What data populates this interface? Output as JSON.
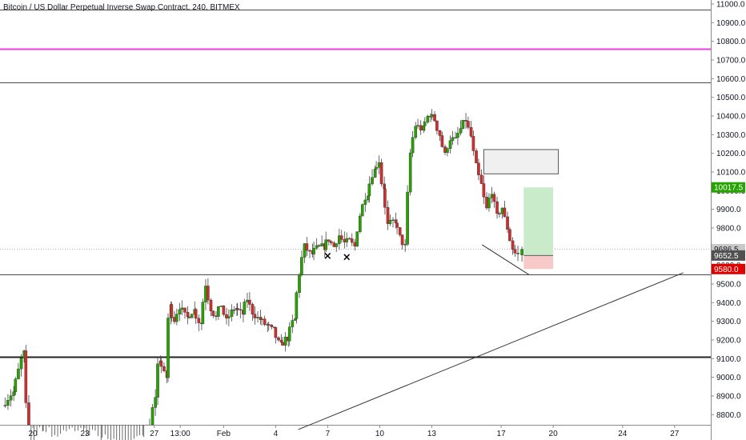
{
  "chart_data": {
    "type": "candlestick",
    "title": "Bitcoin / US Dollar Perpetual Inverse Swap Contract, 240, BITMEX",
    "y_ticks": [
      8800,
      8900,
      9000,
      9100,
      9200,
      9300,
      9400,
      9500,
      9600,
      9700,
      9800,
      9900,
      10000,
      10100,
      10200,
      10300,
      10400,
      10500,
      10600,
      10700,
      10800,
      10900,
      11000
    ],
    "y_tick_labels": [
      "8800.0",
      "8900.0",
      "9000.0",
      "9100.0",
      "9200.0",
      "9300.0",
      "9400.0",
      "9500.0",
      "9600.0",
      "9700.0",
      "9800.0",
      "9900.0",
      "10000.0",
      "10100.0",
      "10200.0",
      "10300.0",
      "10400.0",
      "10500.0",
      "10600.0",
      "10700.0",
      "10800.0",
      "10900.0",
      "11000.0"
    ],
    "ylim": [
      8720,
      11040
    ],
    "x_ticks": [
      {
        "day": 20,
        "label": "20"
      },
      {
        "day": 23,
        "label": "23"
      },
      {
        "day": 27,
        "label": "27"
      },
      {
        "day": 28.5,
        "label": "13:00"
      },
      {
        "day": 31,
        "label": "Feb"
      },
      {
        "day": 34,
        "label": "4"
      },
      {
        "day": 37,
        "label": "7"
      },
      {
        "day": 40,
        "label": "10"
      },
      {
        "day": 43,
        "label": "13"
      },
      {
        "day": 47,
        "label": "17"
      },
      {
        "day": 50,
        "label": "20"
      },
      {
        "day": 54,
        "label": "24"
      },
      {
        "day": 57,
        "label": "27"
      }
    ],
    "x_days_meaning": "days counted from Jan 1 on the printed date axis",
    "up_color": "#26a300",
    "down_color": "#d12d2d",
    "price_points": [
      [
        18.4,
        8850
      ],
      [
        19.0,
        8920
      ],
      [
        19.6,
        9130
      ],
      [
        19.9,
        8620
      ],
      [
        20.6,
        8700
      ],
      [
        21.6,
        8660
      ],
      [
        22.6,
        8700
      ],
      [
        24.0,
        8650
      ],
      [
        25.5,
        8600
      ],
      [
        26.4,
        8640
      ],
      [
        26.9,
        8740
      ],
      [
        27.2,
        8900
      ],
      [
        27.4,
        9100
      ],
      [
        27.8,
        9000
      ],
      [
        28.0,
        9380
      ],
      [
        28.3,
        9310
      ],
      [
        28.6,
        9380
      ],
      [
        29.0,
        9320
      ],
      [
        29.4,
        9360
      ],
      [
        29.8,
        9290
      ],
      [
        30.1,
        9500
      ],
      [
        30.4,
        9370
      ],
      [
        30.7,
        9320
      ],
      [
        31.0,
        9390
      ],
      [
        31.3,
        9300
      ],
      [
        31.6,
        9350
      ],
      [
        31.8,
        9370
      ],
      [
        32.2,
        9340
      ],
      [
        32.5,
        9420
      ],
      [
        32.8,
        9350
      ],
      [
        33.2,
        9310
      ],
      [
        33.6,
        9280
      ],
      [
        34.0,
        9250
      ],
      [
        34.4,
        9170
      ],
      [
        34.8,
        9210
      ],
      [
        35.2,
        9310
      ],
      [
        35.5,
        9560
      ],
      [
        35.8,
        9700
      ],
      [
        36.2,
        9660
      ],
      [
        36.5,
        9690
      ],
      [
        36.9,
        9700
      ],
      [
        37.2,
        9740
      ],
      [
        37.5,
        9700
      ],
      [
        37.8,
        9760
      ],
      [
        38.1,
        9720
      ],
      [
        38.4,
        9730
      ],
      [
        38.7,
        9700
      ],
      [
        39.0,
        9870
      ],
      [
        39.4,
        9990
      ],
      [
        39.8,
        10110
      ],
      [
        40.1,
        10160
      ],
      [
        40.3,
        10020
      ],
      [
        40.6,
        9810
      ],
      [
        41.0,
        9840
      ],
      [
        41.3,
        9750
      ],
      [
        41.6,
        9700
      ],
      [
        41.9,
        10200
      ],
      [
        42.2,
        10350
      ],
      [
        42.6,
        10330
      ],
      [
        43.0,
        10410
      ],
      [
        43.3,
        10380
      ],
      [
        43.6,
        10300
      ],
      [
        43.9,
        10190
      ],
      [
        44.2,
        10280
      ],
      [
        44.5,
        10270
      ],
      [
        44.8,
        10330
      ],
      [
        45.1,
        10380
      ],
      [
        45.4,
        10290
      ],
      [
        45.7,
        10130
      ],
      [
        46.0,
        10030
      ],
      [
        46.3,
        9900
      ],
      [
        46.6,
        10000
      ],
      [
        46.9,
        9860
      ],
      [
        47.2,
        9910
      ],
      [
        47.5,
        9800
      ],
      [
        47.8,
        9690
      ],
      [
        48.0,
        9660
      ]
    ],
    "last_candle": {
      "day": 48.2,
      "open": 9655,
      "close": 9686,
      "high": 9700,
      "low": 9620
    },
    "horizontal_lines": [
      {
        "price": 10970,
        "color": "#4a4a4a",
        "width": 1
      },
      {
        "price": 10760,
        "color": "#e83fe0",
        "width": 2
      },
      {
        "price": 10580,
        "color": "#4a4a4a",
        "width": 1
      },
      {
        "price": 9550,
        "color": "#4a4a4a",
        "width": 1
      },
      {
        "price": 9110,
        "color": "#222222",
        "width": 2
      }
    ],
    "trend_lines": [
      {
        "from": {
          "day": 35.3,
          "price": 8720
        },
        "to": {
          "day": 57.5,
          "price": 9560
        },
        "color": "#333333"
      },
      {
        "from": {
          "day": 45.9,
          "price": 9710
        },
        "to": {
          "day": 48.6,
          "price": 9550
        },
        "color": "#333333"
      }
    ],
    "rectangles": [
      {
        "day1": 46.0,
        "day2": 50.3,
        "price_low": 10090,
        "price_high": 10220,
        "fill": "#f0f0f0",
        "stroke": "#555555"
      }
    ],
    "position": {
      "day1": 48.3,
      "day2": 50.0,
      "entry": 9652.5,
      "target": 10017.5,
      "stop": 9580,
      "profit_color": "#c9ebc9",
      "loss_color": "#f8c9c9"
    },
    "markers": [
      {
        "day": 37.0,
        "price": 9650,
        "symbol": "×"
      },
      {
        "day": 38.1,
        "price": 9643,
        "symbol": "×"
      }
    ],
    "price_badges": [
      {
        "price": 10017.5,
        "label": "10017.5",
        "bg": "#26a300",
        "fg": "#ffffff"
      },
      {
        "price": 9686.5,
        "label": "9686.5",
        "bg": "#c8c8c8",
        "fg": "#131722"
      },
      {
        "price": 9652.5,
        "label": "9652.5",
        "bg": "#505050",
        "fg": "#ffffff"
      },
      {
        "price": 9580,
        "label": "9580.0",
        "bg": "#e00000",
        "fg": "#ffffff"
      }
    ],
    "current_price_line": 9686.5
  }
}
